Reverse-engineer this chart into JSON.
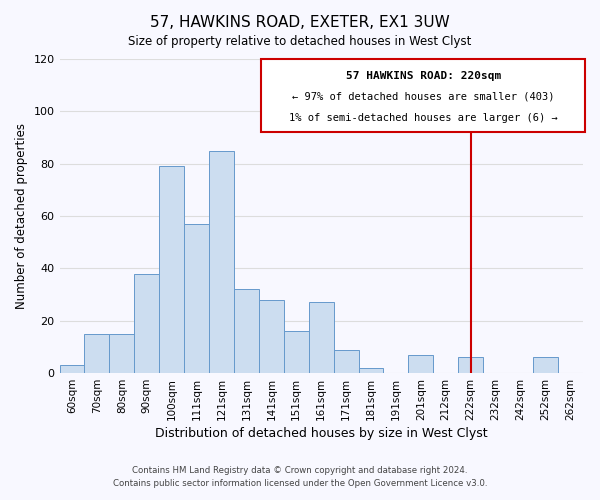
{
  "title": "57, HAWKINS ROAD, EXETER, EX1 3UW",
  "subtitle": "Size of property relative to detached houses in West Clyst",
  "xlabel": "Distribution of detached houses by size in West Clyst",
  "ylabel": "Number of detached properties",
  "footer_line1": "Contains HM Land Registry data © Crown copyright and database right 2024.",
  "footer_line2": "Contains public sector information licensed under the Open Government Licence v3.0.",
  "bar_labels": [
    "60sqm",
    "70sqm",
    "80sqm",
    "90sqm",
    "100sqm",
    "111sqm",
    "121sqm",
    "131sqm",
    "141sqm",
    "151sqm",
    "161sqm",
    "171sqm",
    "181sqm",
    "191sqm",
    "201sqm",
    "212sqm",
    "222sqm",
    "232sqm",
    "242sqm",
    "252sqm",
    "262sqm"
  ],
  "bar_values": [
    3,
    15,
    15,
    38,
    79,
    57,
    85,
    32,
    28,
    16,
    27,
    9,
    2,
    0,
    7,
    0,
    6,
    0,
    0,
    6,
    0
  ],
  "bar_color": "#ccddf0",
  "bar_edge_color": "#6699cc",
  "ylim": [
    0,
    120
  ],
  "yticks": [
    0,
    20,
    40,
    60,
    80,
    100,
    120
  ],
  "vline_label_idx": 16,
  "vline_color": "#cc0000",
  "annotation_title": "57 HAWKINS ROAD: 220sqm",
  "annotation_line1": "← 97% of detached houses are smaller (403)",
  "annotation_line2": "1% of semi-detached houses are larger (6) →",
  "annotation_box_color": "#ffffff",
  "annotation_box_edge": "#cc0000",
  "background_color": "#f8f8ff",
  "grid_color": "#dddddd"
}
